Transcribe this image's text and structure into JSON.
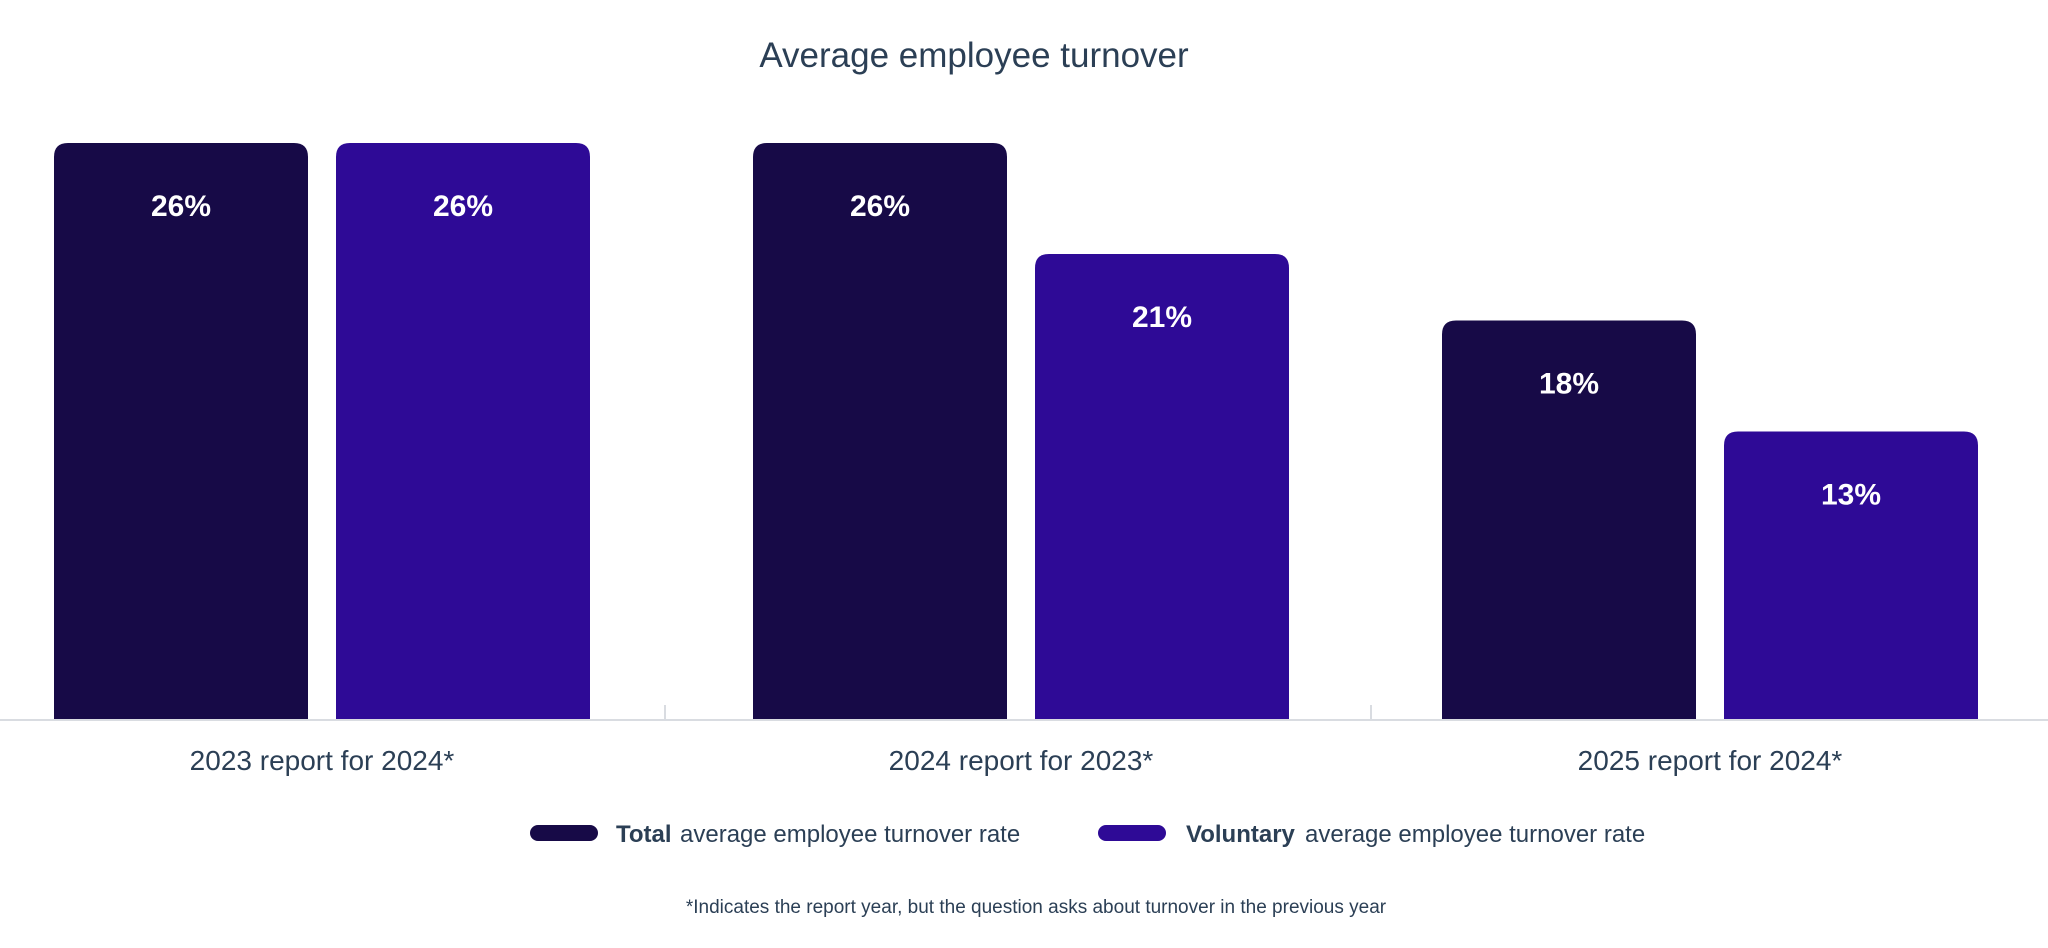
{
  "chart_data": {
    "type": "bar",
    "title": "Average employee turnover",
    "categories": [
      "2023 report for 2024*",
      "2024 report for 2023*",
      "2025 report for 2024*"
    ],
    "series": [
      {
        "name": "Total average employee turnover rate",
        "legend_bold": "Total",
        "legend_rest": "average employee turnover rate",
        "color": "#170a47",
        "values": [
          26,
          26,
          18
        ],
        "labels": [
          "26%",
          "26%",
          "18%"
        ]
      },
      {
        "name": "Voluntary average employee turnover rate",
        "legend_bold": "Voluntary",
        "legend_rest": "average employee turnover rate",
        "color": "#2e0a96",
        "values": [
          26,
          21,
          13
        ],
        "labels": [
          "26%",
          "21%",
          "13%"
        ]
      }
    ],
    "ylim": [
      0,
      26
    ],
    "ylabel": "",
    "xlabel": "",
    "grid": false,
    "legend_position": "bottom-center",
    "footnote": "*Indicates the report year, but the question asks about turnover in the previous year"
  }
}
